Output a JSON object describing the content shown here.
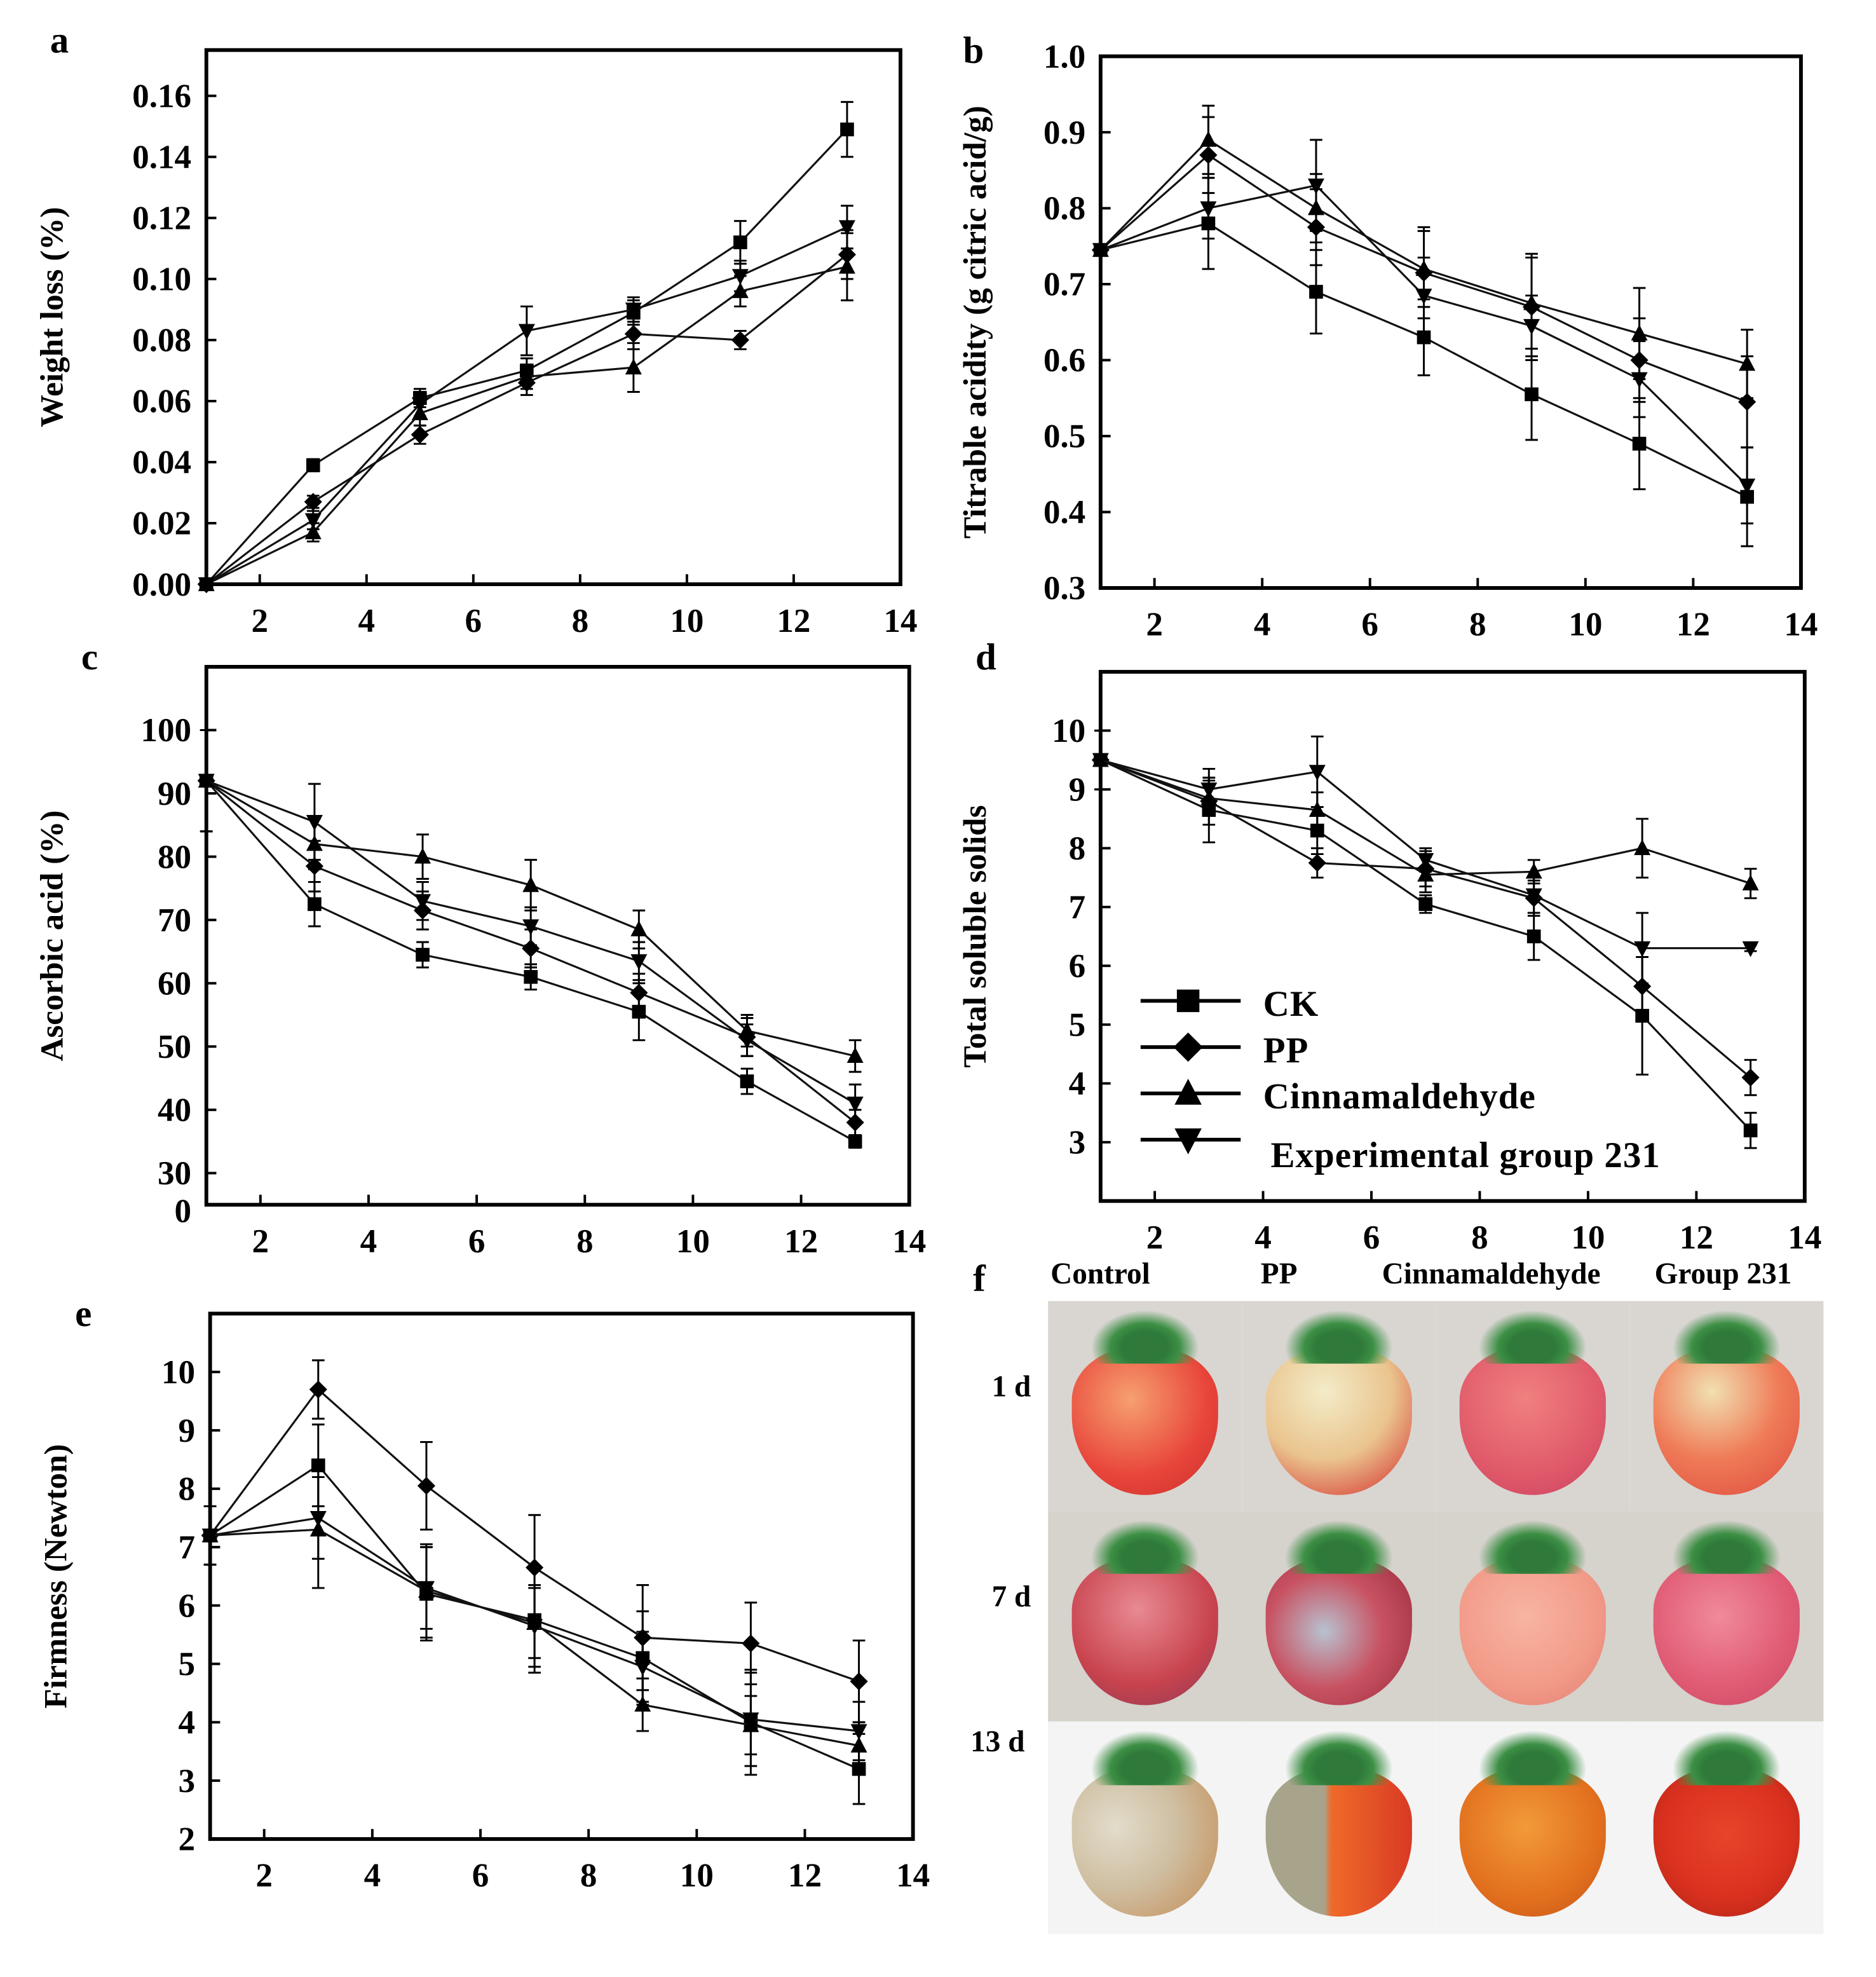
{
  "legend": {
    "items": [
      {
        "label": "CK",
        "marker": "square"
      },
      {
        "label": "PP",
        "marker": "diamond"
      },
      {
        "label": "Cinnamaldehyde",
        "marker": "triangle-up"
      },
      {
        "label": "Experimental group 231",
        "marker": "triangle-down"
      }
    ]
  },
  "chart_data": [
    {
      "panel": "a",
      "type": "line",
      "ylabel": "Weight loss (%)",
      "xlabel": "",
      "xlim": [
        1,
        14
      ],
      "ylim": [
        0,
        0.175
      ],
      "xticks": [
        2,
        4,
        6,
        8,
        10,
        12,
        14
      ],
      "yticks": [
        "0.00",
        "0.02",
        "0.04",
        "0.06",
        "0.08",
        "0.10",
        "0.12",
        "0.14",
        "0.16"
      ],
      "x": [
        1,
        3,
        5,
        7,
        9,
        11,
        13
      ],
      "series": [
        {
          "name": "CK",
          "values": [
            0,
            0.039,
            0.061,
            0.07,
            0.089,
            0.112,
            0.149
          ],
          "err": [
            0,
            0.002,
            0.003,
            0.004,
            0.004,
            0.007,
            0.009
          ]
        },
        {
          "name": "PP",
          "values": [
            0,
            0.027,
            0.049,
            0.066,
            0.082,
            0.08,
            0.108
          ],
          "err": [
            0,
            0.002,
            0.003,
            0.004,
            0.005,
            0.003,
            0.008
          ]
        },
        {
          "name": "Cinnamaldehyde",
          "values": [
            0,
            0.017,
            0.056,
            0.068,
            0.071,
            0.096,
            0.104
          ],
          "err": [
            0,
            0.003,
            0.004,
            0.004,
            0.008,
            0.005,
            0.011
          ]
        },
        {
          "name": "Experimental group 231",
          "values": [
            0,
            0.021,
            0.059,
            0.083,
            0.09,
            0.101,
            0.117
          ],
          "err": [
            0,
            0.003,
            0.004,
            0.008,
            0.004,
            0.005,
            0.007
          ]
        }
      ]
    },
    {
      "panel": "b",
      "type": "line",
      "ylabel": "Titrable acidity (g citric acid/g)",
      "xlabel": "",
      "xlim": [
        1,
        14
      ],
      "ylim": [
        0.3,
        1.0
      ],
      "xticks": [
        2,
        4,
        6,
        8,
        10,
        12,
        14
      ],
      "yticks": [
        "0.3",
        "0.4",
        "0.5",
        "0.6",
        "0.7",
        "0.8",
        "0.9",
        "1.0"
      ],
      "x": [
        1,
        3,
        5,
        7,
        9,
        11,
        13
      ],
      "series": [
        {
          "name": "CK",
          "values": [
            0.745,
            0.78,
            0.69,
            0.63,
            0.555,
            0.49,
            0.42
          ],
          "err": [
            0,
            0.06,
            0.055,
            0.05,
            0.06,
            0.06,
            0.065
          ]
        },
        {
          "name": "PP",
          "values": [
            0.745,
            0.87,
            0.775,
            0.715,
            0.67,
            0.6,
            0.545
          ],
          "err": [
            0,
            0.05,
            0.05,
            0.06,
            0.07,
            0.055,
            0.06
          ]
        },
        {
          "name": "Cinnamaldehyde",
          "values": [
            0.745,
            0.89,
            0.8,
            0.72,
            0.675,
            0.635,
            0.595
          ],
          "err": [
            0,
            0.045,
            0.045,
            0.05,
            0.06,
            0.06,
            0.045
          ]
        },
        {
          "name": "Experimental group 231",
          "values": [
            0.745,
            0.8,
            0.83,
            0.685,
            0.645,
            0.575,
            0.435
          ],
          "err": [
            0,
            0.04,
            0.06,
            0.05,
            0.04,
            0.05,
            0.05
          ]
        }
      ]
    },
    {
      "panel": "c",
      "type": "line",
      "ylabel": "Ascorbic acid (%)",
      "xlabel": "",
      "xlim": [
        1,
        14
      ],
      "ylim": [
        25,
        110
      ],
      "xticks": [
        2,
        4,
        6,
        8,
        10,
        12,
        14
      ],
      "yticks": [
        "30",
        "40",
        "50",
        "60",
        "70",
        "80",
        "90",
        "100"
      ],
      "y_break_label": "0",
      "x": [
        1,
        3,
        5,
        7,
        9,
        11,
        13
      ],
      "series": [
        {
          "name": "CK",
          "values": [
            92,
            72.5,
            64.5,
            61,
            55.5,
            44.5,
            35
          ],
          "err": [
            8,
            3.5,
            2,
            2,
            4.5,
            2,
            1
          ]
        },
        {
          "name": "PP",
          "values": [
            92,
            78.5,
            71.5,
            65.5,
            58.5,
            51.5,
            38
          ],
          "err": [
            8,
            4,
            3,
            3,
            3,
            3,
            2
          ]
        },
        {
          "name": "Cinnamaldehyde",
          "values": [
            92,
            82,
            80,
            75.5,
            68.5,
            52.5,
            48.5
          ],
          "err": [
            8,
            4,
            3.5,
            4,
            3,
            2.5,
            2.5
          ]
        },
        {
          "name": "Experimental group 231",
          "values": [
            92,
            85.5,
            73,
            69,
            63.5,
            51,
            41
          ],
          "err": [
            8,
            6,
            3,
            3,
            3,
            2.5,
            3
          ]
        }
      ]
    },
    {
      "panel": "d",
      "type": "line",
      "ylabel": "Total soluble solids",
      "xlabel": "",
      "xlim": [
        1,
        14
      ],
      "ylim": [
        2,
        11
      ],
      "xticks": [
        2,
        4,
        6,
        8,
        10,
        12,
        14
      ],
      "yticks": [
        "3",
        "4",
        "5",
        "6",
        "7",
        "8",
        "9",
        "10"
      ],
      "x": [
        1,
        3,
        5,
        7,
        9,
        11,
        13
      ],
      "series": [
        {
          "name": "CK",
          "values": [
            9.5,
            8.65,
            8.3,
            7.05,
            6.5,
            5.15,
            3.2
          ],
          "err": [
            0.5,
            0.55,
            0.4,
            0.15,
            0.4,
            1.0,
            0.3
          ]
        },
        {
          "name": "PP",
          "values": [
            9.5,
            8.8,
            7.75,
            7.65,
            7.15,
            5.65,
            4.1
          ],
          "err": [
            0.5,
            0.4,
            0.25,
            0.3,
            0.3,
            0.5,
            0.3
          ]
        },
        {
          "name": "Cinnamaldehyde",
          "values": [
            9.5,
            8.85,
            8.65,
            7.55,
            7.6,
            8.0,
            7.4
          ],
          "err": [
            0.5,
            0.3,
            0.3,
            0.3,
            0.2,
            0.5,
            0.25
          ]
        },
        {
          "name": "Experimental group 231",
          "values": [
            9.5,
            9.0,
            9.3,
            7.8,
            7.2,
            6.3,
            6.3
          ],
          "err": [
            0.5,
            0.35,
            0.6,
            0.2,
            0.3,
            0.6,
            0.05
          ]
        }
      ]
    },
    {
      "panel": "e",
      "type": "line",
      "ylabel": "Firmness (Newton)",
      "xlabel": "",
      "xlim": [
        1,
        14
      ],
      "ylim": [
        2,
        11
      ],
      "xticks": [
        2,
        4,
        6,
        8,
        10,
        12,
        14
      ],
      "yticks": [
        "2",
        "3",
        "4",
        "5",
        "6",
        "7",
        "8",
        "9",
        "10"
      ],
      "x": [
        1,
        3,
        5,
        7,
        9,
        11,
        13
      ],
      "series": [
        {
          "name": "CK",
          "values": [
            7.2,
            8.4,
            6.2,
            5.75,
            5.1,
            4.0,
            3.2
          ],
          "err": [
            0.5,
            0.7,
            0.8,
            0.9,
            0.8,
            0.9,
            0.6
          ]
        },
        {
          "name": "PP",
          "values": [
            7.2,
            9.7,
            8.05,
            6.65,
            5.45,
            5.35,
            4.7
          ],
          "err": [
            0.5,
            0.5,
            0.75,
            0.9,
            0.9,
            0.7,
            0.7
          ]
        },
        {
          "name": "Cinnamaldehyde",
          "values": [
            7.2,
            7.3,
            6.25,
            5.7,
            4.3,
            3.95,
            3.6
          ],
          "err": [
            0.5,
            1.0,
            0.8,
            0.6,
            0.45,
            0.5,
            0.4
          ]
        },
        {
          "name": "Experimental group 231",
          "values": [
            7.2,
            7.5,
            6.3,
            5.65,
            4.95,
            4.05,
            3.85
          ],
          "err": [
            0.5,
            0.7,
            0.7,
            0.7,
            0.6,
            0.8,
            0.5
          ]
        }
      ]
    }
  ],
  "photos": {
    "panel": "f",
    "columns": [
      "Control",
      "PP",
      "Cinnamaldehyde",
      "Group 231"
    ],
    "rows": [
      "1 d",
      "7 d",
      "13 d"
    ]
  }
}
